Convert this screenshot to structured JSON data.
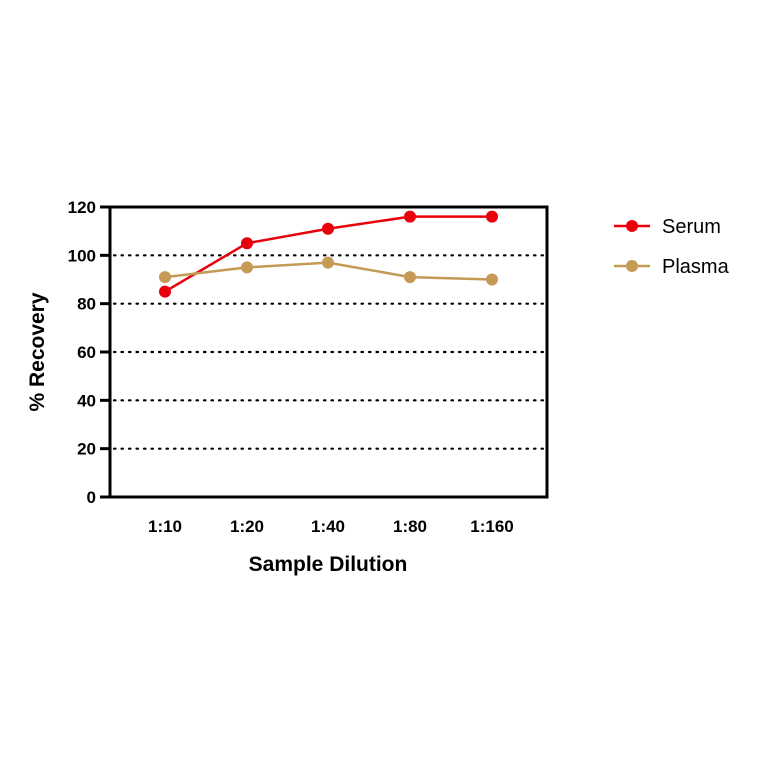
{
  "chart_data": {
    "type": "line",
    "title": "",
    "xlabel": "Sample Dilution",
    "ylabel": "% Recovery",
    "categories": [
      "1:10",
      "1:20",
      "1:40",
      "1:80",
      "1:160"
    ],
    "ylim": [
      0,
      120
    ],
    "yticks": [
      0,
      20,
      40,
      60,
      80,
      100,
      120
    ],
    "grid": "horizontal dotted",
    "legend": "right",
    "series": [
      {
        "name": "Serum",
        "color": "#e8000b",
        "values": [
          85,
          105,
          111,
          116,
          116
        ]
      },
      {
        "name": "Plasma",
        "color": "#c49a55",
        "values": [
          91,
          95,
          97,
          91,
          90
        ]
      }
    ]
  }
}
